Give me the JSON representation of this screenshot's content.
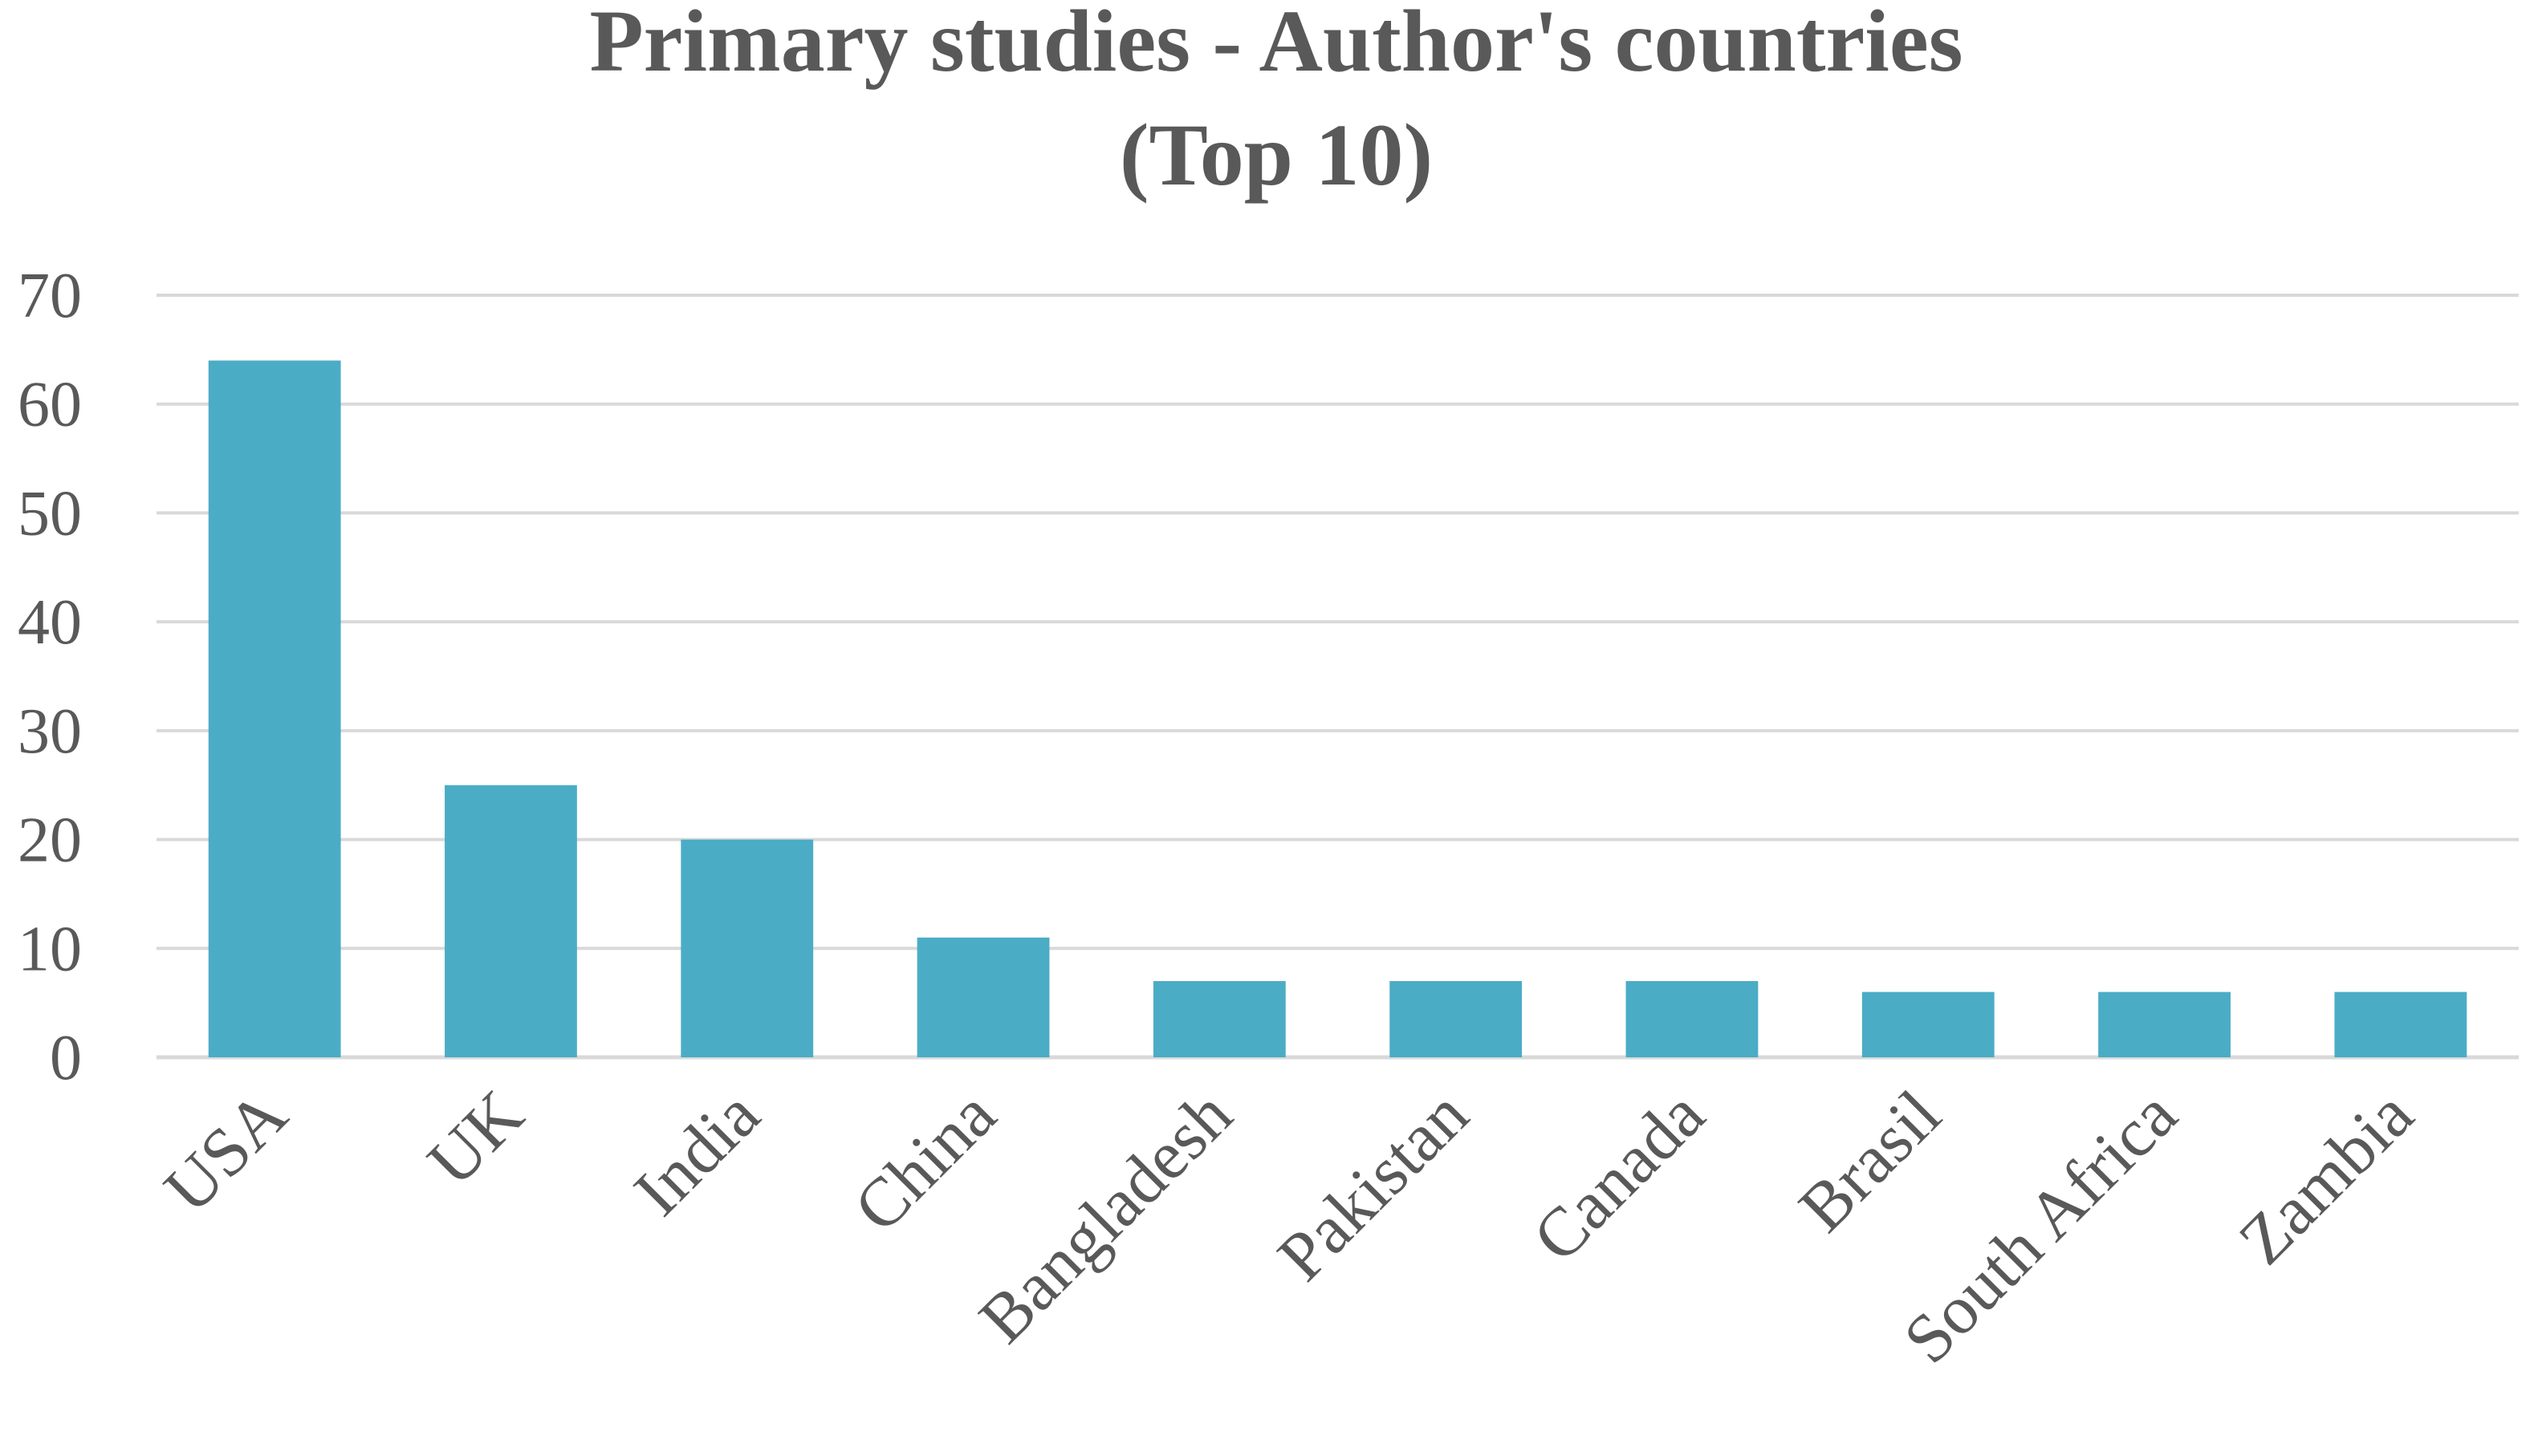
{
  "chart_data": {
    "type": "bar",
    "title": "Primary studies - Author's countries",
    "subtitle": "(Top 10)",
    "xlabel": "",
    "ylabel": "",
    "categories": [
      "USA",
      "UK",
      "India",
      "China",
      "Bangladesh",
      "Pakistan",
      "Canada",
      "Brasil",
      "South Africa",
      "Zambia"
    ],
    "values": [
      64,
      25,
      20,
      11,
      7,
      7,
      7,
      6,
      6,
      6
    ],
    "ylim": [
      0,
      70
    ],
    "yticks": [
      0,
      10,
      20,
      30,
      40,
      50,
      60,
      70
    ],
    "grid": true,
    "legend": "none",
    "colors": {
      "bar": "#4bacc6",
      "text": "#595959",
      "grid": "#d9d9d9"
    }
  }
}
